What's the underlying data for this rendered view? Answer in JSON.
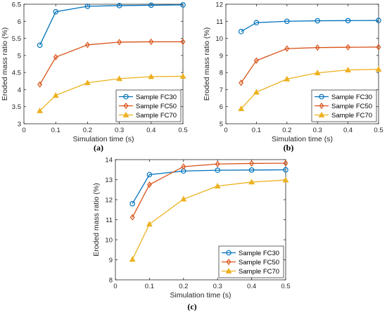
{
  "chart_data": [
    {
      "type": "line",
      "panel_label": "(a)",
      "xlabel": "Simulation time (s)",
      "ylabel": "Eroded mass ratio (%)",
      "xlim": [
        0,
        0.5
      ],
      "ylim": [
        3,
        6.5
      ],
      "xticks": [
        "0",
        "0.1",
        "0.2",
        "0.3",
        "0.4",
        "0.5"
      ],
      "yticks": [
        "3",
        "3.5",
        "4",
        "4.5",
        "5",
        "5.5",
        "6",
        "6.5"
      ],
      "grid": false,
      "legend_position": "bottom-right",
      "x": [
        0.05,
        0.1,
        0.2,
        0.3,
        0.4,
        0.5
      ],
      "series": [
        {
          "name": "Sample FC30",
          "color": "#0072BD",
          "marker": "circle",
          "values": [
            5.3,
            6.28,
            6.44,
            6.46,
            6.47,
            6.48
          ]
        },
        {
          "name": "Sample FC50",
          "color": "#D95319",
          "marker": "diamond",
          "values": [
            4.15,
            4.95,
            5.31,
            5.39,
            5.4,
            5.4
          ]
        },
        {
          "name": "Sample FC70",
          "color": "#EDB120",
          "marker": "triangle",
          "values": [
            3.38,
            3.83,
            4.2,
            4.32,
            4.38,
            4.39
          ]
        }
      ]
    },
    {
      "type": "line",
      "panel_label": "(b)",
      "xlabel": "Simulation time (s)",
      "ylabel": "Eroded mass ratio (%)",
      "xlim": [
        0,
        0.5
      ],
      "ylim": [
        5,
        12
      ],
      "xticks": [
        "0",
        "0.1",
        "0.2",
        "0.3",
        "0.4",
        "0.5"
      ],
      "yticks": [
        "5",
        "6",
        "7",
        "8",
        "9",
        "10",
        "11",
        "12"
      ],
      "grid": false,
      "legend_position": "bottom-right",
      "x": [
        0.05,
        0.1,
        0.2,
        0.3,
        0.4,
        0.5
      ],
      "series": [
        {
          "name": "Sample FC30",
          "color": "#0072BD",
          "marker": "circle",
          "values": [
            10.4,
            10.92,
            11.0,
            11.03,
            11.04,
            11.05
          ]
        },
        {
          "name": "Sample FC50",
          "color": "#D95319",
          "marker": "diamond",
          "values": [
            7.4,
            8.7,
            9.4,
            9.46,
            9.48,
            9.49
          ]
        },
        {
          "name": "Sample FC70",
          "color": "#EDB120",
          "marker": "triangle",
          "values": [
            5.88,
            6.85,
            7.62,
            7.98,
            8.15,
            8.19
          ]
        }
      ]
    },
    {
      "type": "line",
      "panel_label": "(c)",
      "xlabel": "Simulation time (s)",
      "ylabel": "Eroded mass ratio (%)",
      "xlim": [
        0,
        0.5
      ],
      "ylim": [
        8,
        14
      ],
      "xticks": [
        "0",
        "0.1",
        "0.2",
        "0.3",
        "0.4",
        "0.5"
      ],
      "yticks": [
        "8",
        "9",
        "10",
        "11",
        "12",
        "13",
        "14"
      ],
      "grid": false,
      "legend_position": "bottom-right",
      "x": [
        0.05,
        0.1,
        0.2,
        0.3,
        0.4,
        0.5
      ],
      "series": [
        {
          "name": "Sample FC30",
          "color": "#0072BD",
          "marker": "circle",
          "values": [
            11.8,
            13.25,
            13.43,
            13.47,
            13.48,
            13.49
          ]
        },
        {
          "name": "Sample FC50",
          "color": "#D95319",
          "marker": "diamond",
          "values": [
            11.12,
            12.75,
            13.65,
            13.78,
            13.81,
            13.82
          ]
        },
        {
          "name": "Sample FC70",
          "color": "#EDB120",
          "marker": "triangle",
          "values": [
            9.02,
            10.78,
            12.03,
            12.68,
            12.88,
            12.98
          ]
        }
      ]
    }
  ]
}
